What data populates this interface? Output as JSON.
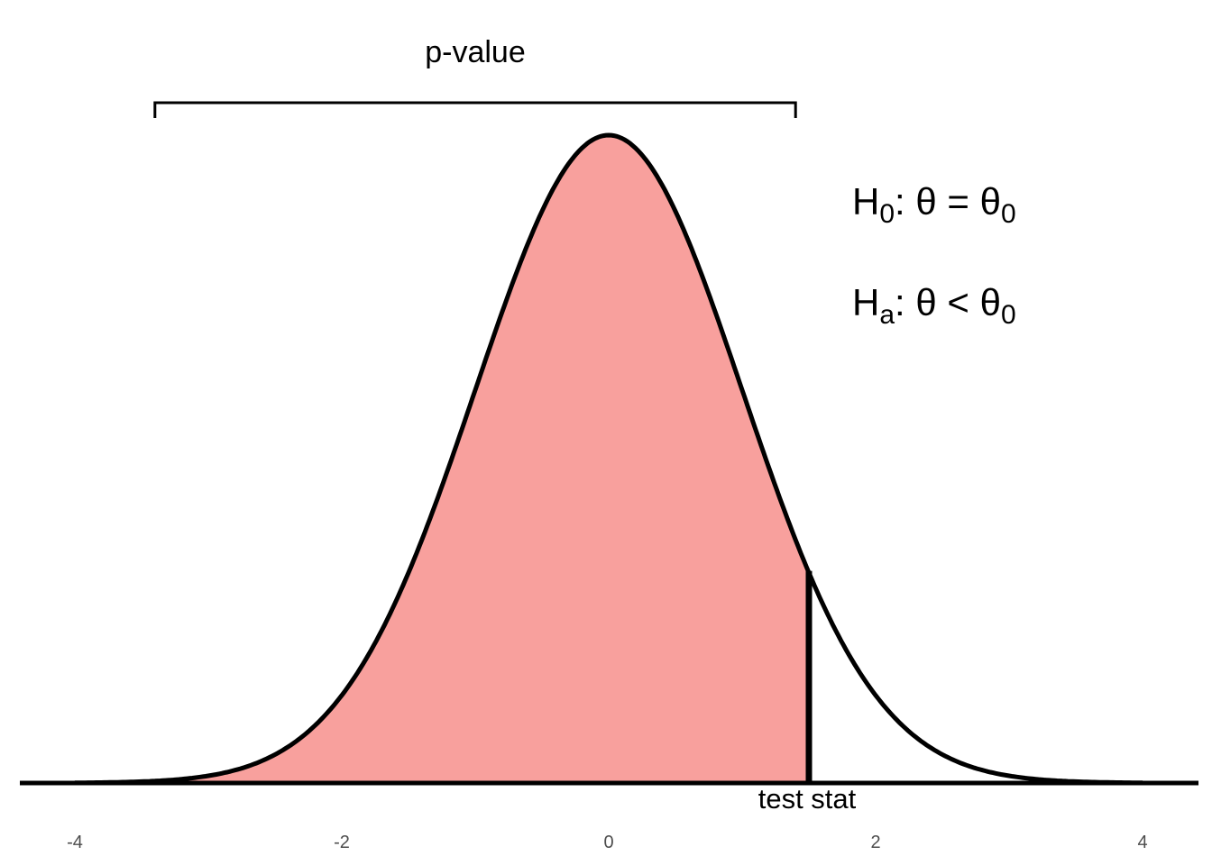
{
  "chart_data": {
    "type": "area",
    "title": "",
    "xlabel": "",
    "ylabel": "",
    "distribution": "standard-normal",
    "xlim": [
      -4,
      4
    ],
    "x_ticks": [
      -4,
      -2,
      0,
      2,
      4
    ],
    "x_tick_labels": [
      "-4",
      "-2",
      "0",
      "2",
      "4"
    ],
    "shaded_region": {
      "from": -4,
      "to": 1.5,
      "label": "p-value"
    },
    "test_stat": {
      "x": 1.5,
      "label": "test stat"
    },
    "bracket": {
      "from": -3.4,
      "to": 1.4
    },
    "hypotheses": {
      "h0": {
        "letter": "H",
        "sub": "0",
        "rest": ":  θ = θ",
        "rest_sub": "0"
      },
      "ha": {
        "letter": "H",
        "sub": "a",
        "rest": ":  θ < θ",
        "rest_sub": "0"
      }
    },
    "grid": false,
    "colors": {
      "fill": "#f8a09d",
      "curve": "#000000"
    }
  }
}
